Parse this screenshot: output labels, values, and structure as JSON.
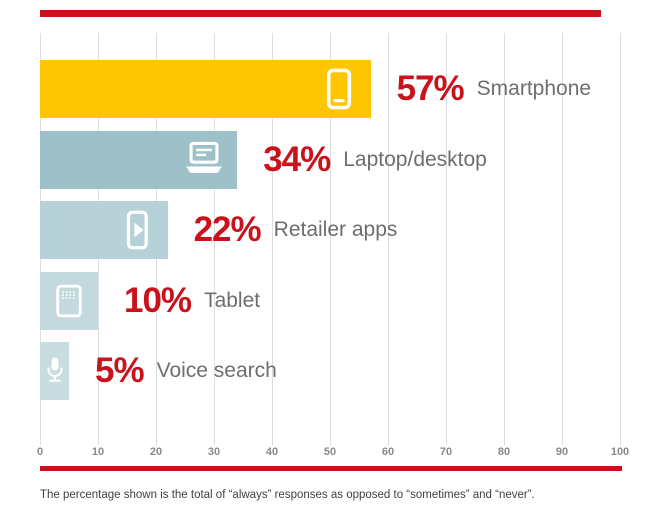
{
  "chart_data": {
    "type": "bar",
    "orientation": "horizontal",
    "categories": [
      "Smartphone",
      "Laptop/desktop",
      "Retailer apps",
      "Tablet",
      "Voice search"
    ],
    "values": [
      57,
      34,
      22,
      10,
      5
    ],
    "value_labels": [
      "57%",
      "34%",
      "22%",
      "10%",
      "5%"
    ],
    "icons": [
      "smartphone-icon",
      "laptop-icon",
      "retailer-apps-icon",
      "tablet-icon",
      "microphone-icon"
    ],
    "bar_colors": [
      "#fdc600",
      "#9ec1c9",
      "#b6d1d7",
      "#c3d9dd",
      "#c9dce0"
    ],
    "xlim": [
      0,
      100
    ],
    "x_ticks": [
      0,
      10,
      20,
      30,
      40,
      50,
      60,
      70,
      80,
      90,
      100
    ],
    "grid": true,
    "legend": false,
    "accent_color": "#c9121c",
    "category_label_color": "#6d6e71",
    "axis_label_color": "#87898c",
    "footnote": "The percentage shown is the total of “always” responses as opposed to “sometimes” and “never”."
  }
}
